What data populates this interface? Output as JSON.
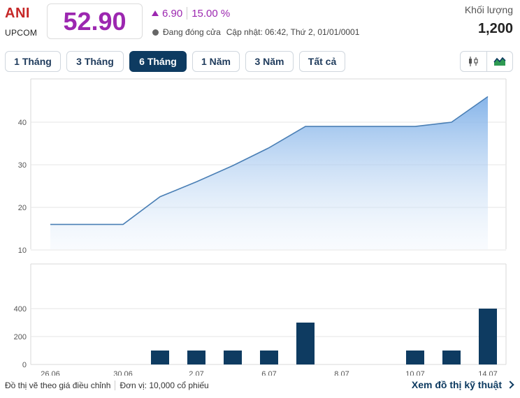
{
  "header": {
    "ticker": "ANI",
    "exchange": "UPCOM",
    "price": "52.90",
    "change": "6.90",
    "change_pct": "15.00 %",
    "status": "Đang đóng cửa",
    "updated": "Cập nhật: 06:42, Thứ 2, 01/01/0001",
    "volume_label": "Khối lượng",
    "volume_value": "1,200"
  },
  "tabs": [
    {
      "label": "1 Tháng",
      "active": false
    },
    {
      "label": "3 Tháng",
      "active": false
    },
    {
      "label": "6 Tháng",
      "active": true
    },
    {
      "label": "1 Năm",
      "active": false
    },
    {
      "label": "3 Năm",
      "active": false
    },
    {
      "label": "Tất cả",
      "active": false
    }
  ],
  "icons": {
    "candlestick": "candlestick-chart-icon",
    "area": "area-chart-icon"
  },
  "colors": {
    "price": "#9c27b0",
    "ticker": "#c62828",
    "line": "#4a7fb5",
    "bar": "#0e3b61",
    "active_tab": "#0e3b61"
  },
  "chart_data": {
    "type": "area",
    "x_ticks": [
      "26.06",
      "30.06",
      "2.07",
      "6.07",
      "8.07",
      "10.07",
      "14.07"
    ],
    "price": {
      "x": [
        "26.06",
        "30.06",
        "1.07",
        "2.07",
        "3.07",
        "6.07",
        "7.07",
        "8.07",
        "9.07",
        "10.07",
        "13.07",
        "14.07"
      ],
      "values": [
        16.0,
        16.0,
        22.5,
        26.0,
        29.8,
        34.0,
        39.0,
        39.0,
        39.0,
        39.0,
        40.0,
        46.0
      ],
      "y_ticks": [
        10,
        20,
        30,
        40
      ]
    },
    "volume": {
      "type": "bar",
      "x": [
        "1.07",
        "2.07",
        "3.07",
        "6.07",
        "7.07",
        "10.07",
        "13.07",
        "14.07"
      ],
      "values": [
        100,
        100,
        100,
        100,
        300,
        100,
        100,
        400
      ],
      "y_ticks": [
        0,
        200,
        400
      ]
    }
  },
  "footer": {
    "note": "Đồ thị vẽ theo giá điều chỉnh",
    "unit": "Đơn vị: 10,000 cổ phiếu",
    "link": "Xem đồ thị kỹ thuật"
  }
}
